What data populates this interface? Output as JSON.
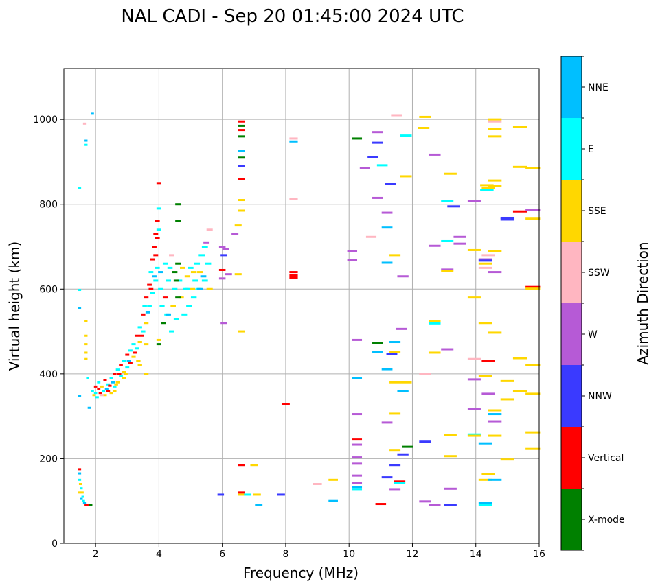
{
  "chart_data": {
    "type": "scatter",
    "title": "NAL CADI - Sep 20 01:45:00 2024 UTC",
    "xlabel": "Frequency (MHz)",
    "ylabel": "Virtual height (km)",
    "xlim": [
      1,
      16
    ],
    "ylim": [
      0,
      1120
    ],
    "xticks": [
      "2",
      "4",
      "6",
      "8",
      "10",
      "12",
      "14",
      "16"
    ],
    "yticks": [
      "0",
      "200",
      "400",
      "600",
      "800",
      "1000"
    ],
    "grid": true,
    "colorbar": {
      "label": "Azimuth Direction",
      "categories": [
        "X-mode",
        "Vertical",
        "NNW",
        "W",
        "SSW",
        "SSE",
        "E",
        "NNE"
      ],
      "colors": [
        "#008000",
        "#ff0000",
        "#3a3aff",
        "#b65ad6",
        "#ffb6c1",
        "#ffd700",
        "#00ffff",
        "#00bfff"
      ]
    },
    "point_format": [
      "frequency_mhz",
      "virtual_height_km",
      "direction_index"
    ],
    "points": [
      [
        1.5,
        175,
        1
      ],
      [
        1.5,
        165,
        7
      ],
      [
        1.5,
        150,
        6
      ],
      [
        1.52,
        140,
        5
      ],
      [
        1.55,
        130,
        6
      ],
      [
        1.58,
        120,
        5
      ],
      [
        1.6,
        110,
        6
      ],
      [
        1.62,
        100,
        6
      ],
      [
        1.65,
        95,
        7
      ],
      [
        1.7,
        90,
        1
      ],
      [
        1.75,
        90,
        1
      ],
      [
        1.85,
        90,
        0
      ],
      [
        1.5,
        120,
        5
      ],
      [
        1.55,
        105,
        7
      ],
      [
        1.5,
        838,
        6
      ],
      [
        1.5,
        598,
        6
      ],
      [
        1.5,
        555,
        7
      ],
      [
        1.5,
        348,
        7
      ],
      [
        1.65,
        990,
        4
      ],
      [
        1.7,
        950,
        7
      ],
      [
        1.7,
        940,
        6
      ],
      [
        1.9,
        1015,
        7
      ],
      [
        1.7,
        525,
        5
      ],
      [
        1.7,
        490,
        5
      ],
      [
        1.7,
        470,
        5
      ],
      [
        1.7,
        450,
        5
      ],
      [
        1.7,
        435,
        5
      ],
      [
        1.75,
        390,
        6
      ],
      [
        1.8,
        320,
        7
      ],
      [
        1.9,
        360,
        6
      ],
      [
        1.95,
        350,
        5
      ],
      [
        2.0,
        370,
        1
      ],
      [
        2.0,
        355,
        6
      ],
      [
        2.05,
        345,
        6
      ],
      [
        2.1,
        365,
        1
      ],
      [
        2.1,
        380,
        6
      ],
      [
        2.15,
        355,
        1
      ],
      [
        2.2,
        370,
        5
      ],
      [
        2.25,
        360,
        6
      ],
      [
        2.3,
        385,
        1
      ],
      [
        2.3,
        350,
        5
      ],
      [
        2.4,
        375,
        6
      ],
      [
        2.4,
        360,
        1
      ],
      [
        2.5,
        390,
        6
      ],
      [
        2.5,
        355,
        5
      ],
      [
        2.6,
        400,
        1
      ],
      [
        2.6,
        370,
        6
      ],
      [
        2.7,
        410,
        6
      ],
      [
        2.7,
        380,
        5
      ],
      [
        2.8,
        420,
        1
      ],
      [
        2.8,
        395,
        6
      ],
      [
        2.9,
        430,
        6
      ],
      [
        2.9,
        405,
        5
      ],
      [
        3.0,
        445,
        1
      ],
      [
        3.0,
        415,
        6
      ],
      [
        3.1,
        455,
        6
      ],
      [
        3.1,
        425,
        1
      ],
      [
        3.2,
        470,
        6
      ],
      [
        3.2,
        440,
        5
      ],
      [
        3.3,
        490,
        1
      ],
      [
        3.3,
        460,
        6
      ],
      [
        3.4,
        510,
        6
      ],
      [
        3.4,
        475,
        5
      ],
      [
        3.5,
        540,
        1
      ],
      [
        3.5,
        500,
        6
      ],
      [
        3.55,
        560,
        6
      ],
      [
        3.6,
        580,
        1
      ],
      [
        3.6,
        520,
        5
      ],
      [
        3.7,
        610,
        1
      ],
      [
        3.7,
        560,
        6
      ],
      [
        3.75,
        640,
        6
      ],
      [
        3.8,
        670,
        1
      ],
      [
        3.8,
        590,
        6
      ],
      [
        3.85,
        700,
        1
      ],
      [
        3.9,
        730,
        1
      ],
      [
        3.9,
        620,
        6
      ],
      [
        3.95,
        760,
        1
      ],
      [
        3.95,
        650,
        6
      ],
      [
        4.0,
        480,
        5
      ],
      [
        4.0,
        470,
        0
      ],
      [
        4.05,
        600,
        6
      ],
      [
        4.1,
        560,
        6
      ],
      [
        4.15,
        520,
        0
      ],
      [
        4.2,
        580,
        1
      ],
      [
        4.25,
        540,
        6
      ],
      [
        4.3,
        620,
        6
      ],
      [
        4.35,
        650,
        6
      ],
      [
        4.4,
        500,
        6
      ],
      [
        4.45,
        560,
        5
      ],
      [
        4.5,
        640,
        0
      ],
      [
        4.5,
        600,
        6
      ],
      [
        4.55,
        530,
        6
      ],
      [
        4.6,
        660,
        0
      ],
      [
        4.65,
        620,
        6
      ],
      [
        4.7,
        580,
        5
      ],
      [
        4.8,
        540,
        6
      ],
      [
        4.85,
        600,
        6
      ],
      [
        4.9,
        630,
        5
      ],
      [
        4.95,
        560,
        6
      ],
      [
        5.0,
        650,
        6
      ],
      [
        5.05,
        600,
        5
      ],
      [
        5.1,
        580,
        6
      ],
      [
        5.15,
        620,
        6
      ],
      [
        5.2,
        660,
        6
      ],
      [
        5.25,
        600,
        6
      ],
      [
        5.3,
        640,
        5
      ],
      [
        5.35,
        680,
        6
      ],
      [
        5.4,
        630,
        7
      ],
      [
        5.45,
        700,
        6
      ],
      [
        5.5,
        710,
        3
      ],
      [
        5.55,
        660,
        6
      ],
      [
        5.6,
        600,
        5
      ],
      [
        5.6,
        740,
        4
      ],
      [
        2.2,
        350,
        4
      ],
      [
        2.35,
        365,
        7
      ],
      [
        2.45,
        372,
        1
      ],
      [
        2.55,
        380,
        7
      ],
      [
        2.75,
        400,
        1
      ],
      [
        3.05,
        430,
        7
      ],
      [
        3.25,
        450,
        1
      ],
      [
        3.45,
        490,
        1
      ],
      [
        3.65,
        545,
        7
      ],
      [
        3.75,
        600,
        1
      ],
      [
        3.85,
        630,
        7
      ],
      [
        3.9,
        680,
        1
      ],
      [
        3.95,
        720,
        1
      ],
      [
        4.0,
        740,
        6
      ],
      [
        4.05,
        640,
        7
      ],
      [
        4.2,
        660,
        6
      ],
      [
        4.3,
        540,
        7
      ],
      [
        4.55,
        620,
        0
      ],
      [
        4.6,
        580,
        0
      ],
      [
        4.75,
        650,
        5
      ],
      [
        4.9,
        600,
        6
      ],
      [
        5.1,
        640,
        5
      ],
      [
        5.3,
        600,
        7
      ],
      [
        5.45,
        620,
        6
      ],
      [
        2.65,
        375,
        5
      ],
      [
        2.95,
        400,
        5
      ],
      [
        3.35,
        430,
        5
      ],
      [
        3.6,
        470,
        5
      ],
      [
        4.0,
        850,
        1
      ],
      [
        4.6,
        800,
        0
      ],
      [
        4.6,
        760,
        0
      ],
      [
        4.0,
        790,
        6
      ],
      [
        4.4,
        680,
        4
      ],
      [
        3.6,
        400,
        5
      ],
      [
        3.4,
        420,
        5
      ],
      [
        2.9,
        390,
        5
      ],
      [
        2.6,
        360,
        5
      ],
      [
        6.6,
        995,
        1
      ],
      [
        6.6,
        985,
        0
      ],
      [
        6.6,
        975,
        1
      ],
      [
        6.6,
        960,
        0
      ],
      [
        6.6,
        925,
        7
      ],
      [
        6.6,
        910,
        0
      ],
      [
        6.6,
        890,
        2
      ],
      [
        6.6,
        860,
        1
      ],
      [
        6.6,
        810,
        5
      ],
      [
        6.6,
        785,
        5
      ],
      [
        6.5,
        750,
        5
      ],
      [
        6.4,
        730,
        3
      ],
      [
        6.1,
        695,
        3
      ],
      [
        6.0,
        700,
        3
      ],
      [
        6.05,
        680,
        2
      ],
      [
        6.0,
        645,
        1
      ],
      [
        6.0,
        625,
        3
      ],
      [
        6.2,
        635,
        3
      ],
      [
        6.5,
        635,
        5
      ],
      [
        6.05,
        520,
        3
      ],
      [
        6.6,
        500,
        5
      ],
      [
        6.6,
        185,
        1
      ],
      [
        6.6,
        120,
        1
      ],
      [
        6.6,
        115,
        5
      ],
      [
        6.8,
        115,
        6
      ],
      [
        7.0,
        185,
        5
      ],
      [
        7.1,
        115,
        5
      ],
      [
        7.15,
        90,
        7
      ],
      [
        5.95,
        115,
        2
      ],
      [
        7.85,
        115,
        2
      ],
      [
        8.0,
        328,
        1
      ],
      [
        8.25,
        955,
        4
      ],
      [
        8.25,
        948,
        7
      ],
      [
        8.25,
        812,
        4
      ],
      [
        8.25,
        640,
        1
      ],
      [
        8.25,
        632,
        1
      ],
      [
        8.25,
        626,
        1
      ],
      [
        9.0,
        140,
        4
      ],
      [
        9.5,
        150,
        5
      ],
      [
        9.5,
        100,
        7
      ],
      [
        10.25,
        955,
        0
      ],
      [
        10.5,
        885,
        3
      ],
      [
        10.75,
        912,
        2
      ],
      [
        10.9,
        970,
        3
      ],
      [
        10.9,
        945,
        2
      ],
      [
        11.05,
        892,
        6
      ],
      [
        11.3,
        848,
        2
      ],
      [
        11.5,
        1010,
        4
      ],
      [
        11.8,
        962,
        6
      ],
      [
        11.8,
        866,
        5
      ],
      [
        10.9,
        815,
        3
      ],
      [
        11.2,
        780,
        3
      ],
      [
        11.2,
        745,
        7
      ],
      [
        10.7,
        723,
        4
      ],
      [
        10.1,
        690,
        3
      ],
      [
        10.1,
        668,
        3
      ],
      [
        11.2,
        662,
        7
      ],
      [
        11.45,
        680,
        5
      ],
      [
        11.7,
        630,
        3
      ],
      [
        11.65,
        506,
        3
      ],
      [
        10.25,
        480,
        3
      ],
      [
        10.9,
        473,
        0
      ],
      [
        11.45,
        475,
        7
      ],
      [
        10.9,
        452,
        7
      ],
      [
        11.35,
        447,
        2
      ],
      [
        11.45,
        452,
        5
      ],
      [
        11.2,
        411,
        7
      ],
      [
        10.25,
        390,
        7
      ],
      [
        11.45,
        380,
        5
      ],
      [
        11.8,
        380,
        5
      ],
      [
        11.7,
        360,
        7
      ],
      [
        10.25,
        305,
        3
      ],
      [
        11.45,
        306,
        5
      ],
      [
        11.2,
        285,
        3
      ],
      [
        10.25,
        245,
        1
      ],
      [
        10.25,
        233,
        3
      ],
      [
        11.45,
        219,
        5
      ],
      [
        11.85,
        228,
        0
      ],
      [
        11.7,
        210,
        2
      ],
      [
        10.25,
        203,
        3
      ],
      [
        10.25,
        188,
        3
      ],
      [
        11.45,
        185,
        2
      ],
      [
        10.25,
        160,
        3
      ],
      [
        11.2,
        156,
        2
      ],
      [
        10.25,
        142,
        3
      ],
      [
        11.6,
        146,
        1
      ],
      [
        11.6,
        142,
        6
      ],
      [
        10.25,
        133,
        7
      ],
      [
        10.25,
        128,
        6
      ],
      [
        11.45,
        128,
        3
      ],
      [
        11.0,
        93,
        1
      ],
      [
        12.4,
        1006,
        5
      ],
      [
        12.35,
        980,
        5
      ],
      [
        12.7,
        917,
        3
      ],
      [
        13.2,
        872,
        5
      ],
      [
        13.1,
        808,
        6
      ],
      [
        13.3,
        795,
        2
      ],
      [
        13.5,
        723,
        3
      ],
      [
        13.5,
        707,
        3
      ],
      [
        12.7,
        702,
        3
      ],
      [
        13.1,
        713,
        6
      ],
      [
        13.1,
        646,
        3
      ],
      [
        13.1,
        642,
        5
      ],
      [
        12.7,
        524,
        5
      ],
      [
        12.7,
        519,
        6
      ],
      [
        12.7,
        450,
        5
      ],
      [
        13.1,
        458,
        3
      ],
      [
        12.4,
        399,
        4
      ],
      [
        12.4,
        240,
        2
      ],
      [
        13.2,
        255,
        5
      ],
      [
        13.2,
        206,
        5
      ],
      [
        13.2,
        129,
        3
      ],
      [
        12.4,
        99,
        3
      ],
      [
        12.7,
        90,
        3
      ],
      [
        13.2,
        90,
        2
      ],
      [
        14.6,
        1000,
        5
      ],
      [
        14.6,
        995,
        4
      ],
      [
        14.6,
        978,
        5
      ],
      [
        14.6,
        960,
        5
      ],
      [
        14.6,
        856,
        5
      ],
      [
        14.6,
        843,
        5
      ],
      [
        14.35,
        845,
        5
      ],
      [
        14.35,
        834,
        6
      ],
      [
        14.4,
        838,
        5
      ],
      [
        13.95,
        807,
        3
      ],
      [
        15.4,
        983,
        5
      ],
      [
        15.4,
        888,
        5
      ],
      [
        15.8,
        885,
        5
      ],
      [
        15.4,
        783,
        1
      ],
      [
        15.8,
        787,
        3
      ],
      [
        15.8,
        766,
        5
      ],
      [
        15.0,
        768,
        2
      ],
      [
        15.0,
        764,
        2
      ],
      [
        15.8,
        605,
        1
      ],
      [
        15.8,
        601,
        5
      ],
      [
        14.6,
        690,
        5
      ],
      [
        14.4,
        680,
        4
      ],
      [
        14.3,
        670,
        3
      ],
      [
        14.3,
        667,
        2
      ],
      [
        14.3,
        660,
        5
      ],
      [
        14.3,
        650,
        4
      ],
      [
        14.6,
        640,
        3
      ],
      [
        13.95,
        692,
        5
      ],
      [
        13.95,
        580,
        5
      ],
      [
        14.3,
        520,
        5
      ],
      [
        13.95,
        435,
        4
      ],
      [
        14.6,
        497,
        5
      ],
      [
        15.4,
        437,
        5
      ],
      [
        14.4,
        430,
        1
      ],
      [
        15.8,
        420,
        5
      ],
      [
        13.95,
        387,
        3
      ],
      [
        14.3,
        395,
        5
      ],
      [
        15.0,
        383,
        5
      ],
      [
        14.4,
        353,
        3
      ],
      [
        15.4,
        360,
        5
      ],
      [
        15.8,
        353,
        5
      ],
      [
        15.0,
        340,
        5
      ],
      [
        13.95,
        318,
        3
      ],
      [
        14.6,
        314,
        5
      ],
      [
        14.6,
        305,
        7
      ],
      [
        14.6,
        288,
        3
      ],
      [
        15.8,
        262,
        5
      ],
      [
        13.95,
        257,
        6
      ],
      [
        13.95,
        254,
        5
      ],
      [
        14.6,
        254,
        5
      ],
      [
        14.3,
        236,
        7
      ],
      [
        15.8,
        223,
        5
      ],
      [
        15.0,
        198,
        5
      ],
      [
        14.4,
        164,
        5
      ],
      [
        14.3,
        150,
        5
      ],
      [
        14.6,
        150,
        7
      ],
      [
        14.3,
        96,
        7
      ],
      [
        14.3,
        91,
        6
      ]
    ]
  }
}
